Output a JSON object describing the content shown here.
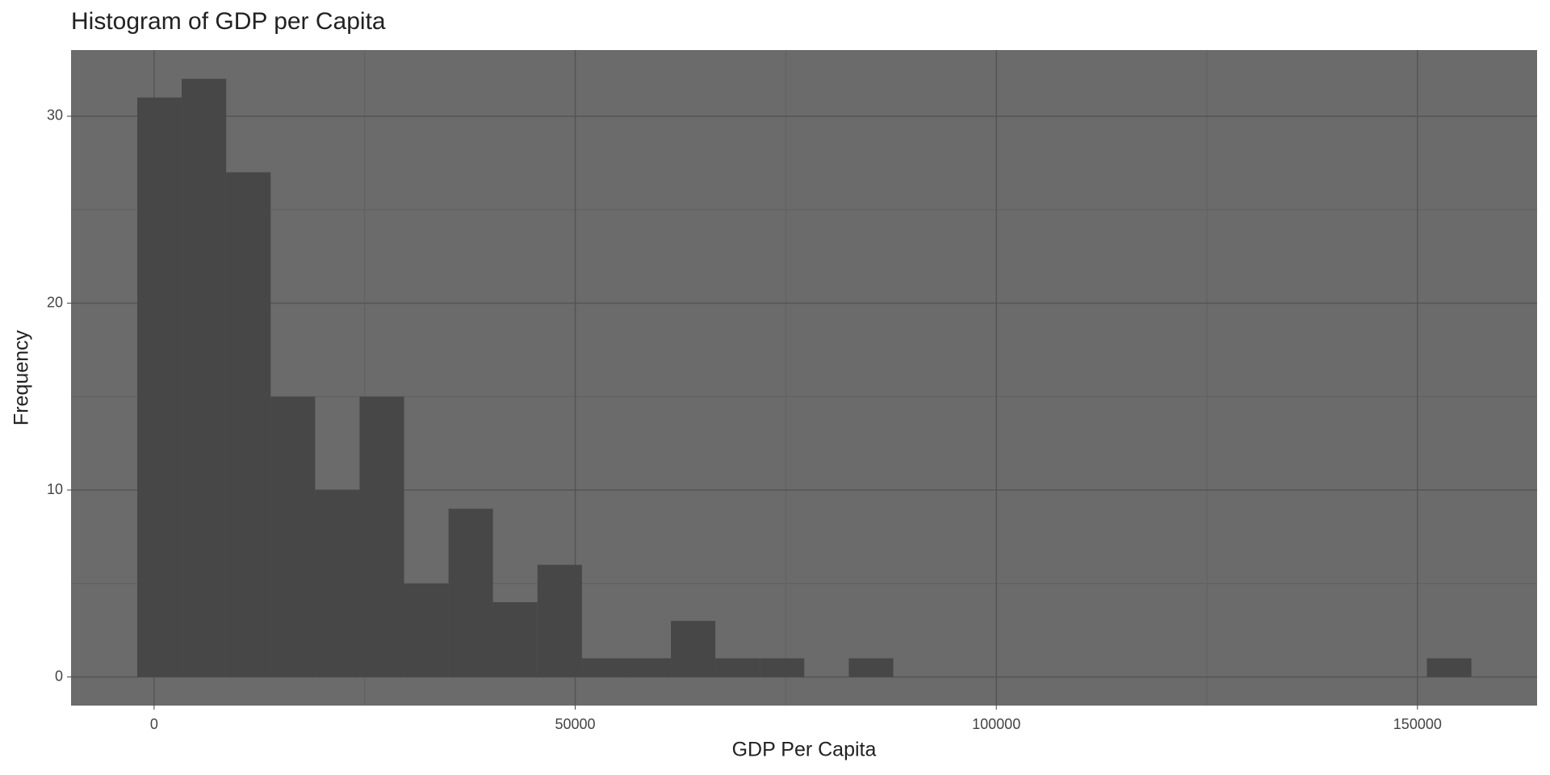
{
  "chart_data": {
    "type": "histogram",
    "title": "Histogram of GDP per Capita",
    "x_label": "GDP Per Capita",
    "y_label": "Frequency",
    "bins": [
      -2000,
      3280,
      8560,
      13840,
      19120,
      24400,
      29680,
      34960,
      40240,
      45520,
      50800,
      56080,
      61360,
      66640,
      71920,
      77200,
      82480,
      87760,
      93040,
      98320,
      103600,
      108880,
      114160,
      119440,
      124720,
      130000,
      135280,
      140560,
      145840,
      151120,
      156400
    ],
    "values": [
      31,
      32,
      27,
      15,
      10,
      15,
      5,
      9,
      4,
      6,
      1,
      1,
      3,
      1,
      1,
      0,
      1,
      0,
      0,
      0,
      0,
      0,
      0,
      0,
      0,
      0,
      0,
      0,
      0,
      1
    ],
    "color": "#474747",
    "panel_color": "#6b6b6b",
    "xlim": [
      -9860,
      164200
    ],
    "ylim": [
      -1.53,
      33.54
    ],
    "xticks": [
      0,
      50000,
      100000,
      150000
    ],
    "yticks": [
      0,
      10,
      20,
      30
    ],
    "x_minor_ticks": [
      25000,
      75000,
      125000
    ],
    "y_minor_ticks": [
      5,
      15,
      25
    ],
    "grid": true
  }
}
